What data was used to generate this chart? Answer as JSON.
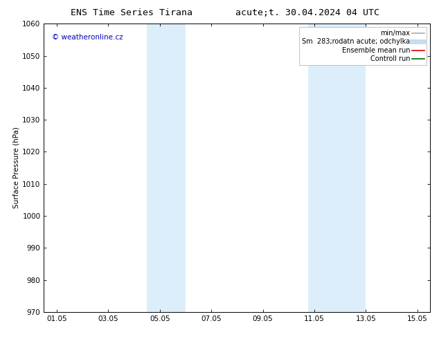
{
  "title_left": "ENS Time Series Tirana",
  "title_right": "acute;t. 30.04.2024 04 UTC",
  "ylabel": "Surface Pressure (hPa)",
  "ylim": [
    970,
    1060
  ],
  "yticks": [
    970,
    980,
    990,
    1000,
    1010,
    1020,
    1030,
    1040,
    1050,
    1060
  ],
  "xlim": [
    0.5,
    15.5
  ],
  "xtick_labels": [
    "01.05",
    "03.05",
    "05.05",
    "07.05",
    "09.05",
    "11.05",
    "13.05",
    "15.05"
  ],
  "xtick_positions": [
    1,
    3,
    5,
    7,
    9,
    11,
    13,
    15
  ],
  "shaded_regions": [
    {
      "start": 4.5,
      "end": 6.0,
      "color": "#dceef9"
    },
    {
      "start": 10.75,
      "end": 13.0,
      "color": "#dceef9"
    }
  ],
  "watermark_text": "© weatheronline.cz",
  "watermark_color": "#0000bb",
  "legend_entries": [
    {
      "label": "min/max",
      "color": "#aaaaaa",
      "lw": 1.2
    },
    {
      "label": "Sm  283;rodatn acute; odchylka",
      "color": "#c8dded",
      "lw": 5
    },
    {
      "label": "Ensemble mean run",
      "color": "#dd0000",
      "lw": 1.2
    },
    {
      "label": "Controll run",
      "color": "#006600",
      "lw": 1.2
    }
  ],
  "bg_color": "#ffffff",
  "spine_color": "#000000",
  "tick_color": "#000000",
  "font_size": 7.5,
  "title_fontsize": 9.5
}
